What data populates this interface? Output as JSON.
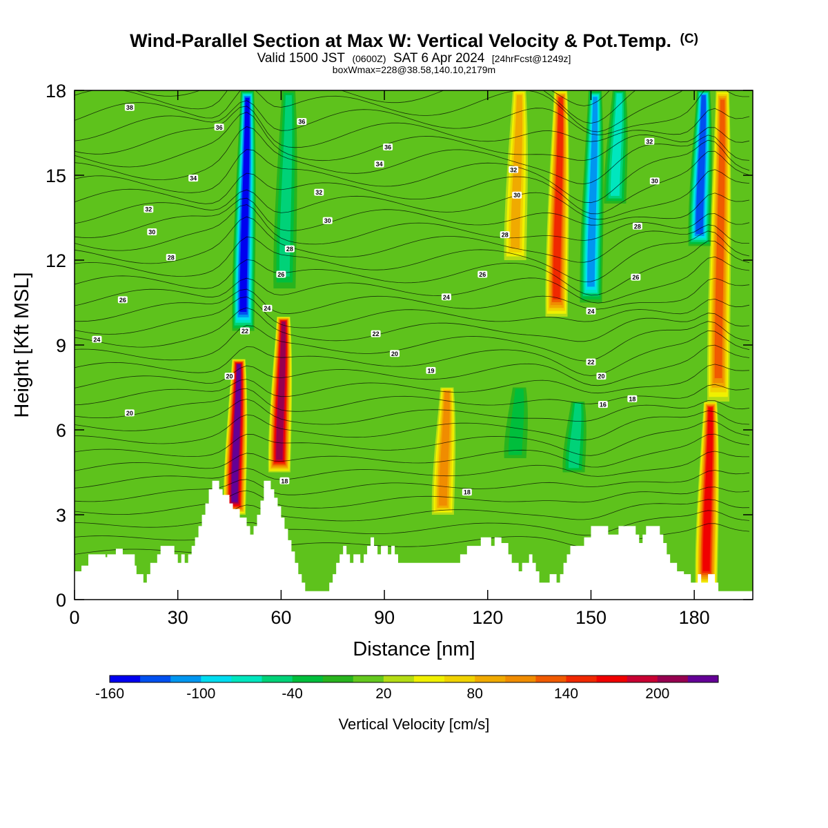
{
  "page": {
    "title_main": "Wind-Parallel Section at Max W: Vertical Velocity & Pot.Temp.",
    "title_mark": "(C)",
    "subtitle_a": "Valid 1500 JST",
    "subtitle_b": "(0600Z)",
    "subtitle_c": "SAT 6 Apr 2024",
    "subtitle_d": "[24hrFcst@1249z]",
    "info_line": "boxWmax=228@38.58,140.10,2179m"
  },
  "chart_data": {
    "type": "heatmap",
    "xlabel": "Distance [nm]",
    "ylabel": "Height [Kft MSL]",
    "xlim": [
      0,
      197
    ],
    "ylim": [
      0,
      18
    ],
    "x_ticks": [
      "0",
      "30",
      "60",
      "90",
      "120",
      "150",
      "180"
    ],
    "x_tick_values": [
      0,
      30,
      60,
      90,
      120,
      150,
      180
    ],
    "y_ticks": [
      "0",
      "3",
      "6",
      "9",
      "12",
      "15",
      "18"
    ],
    "y_tick_values": [
      0,
      3,
      6,
      9,
      12,
      15,
      18
    ],
    "colorbar": {
      "label": "Vertical Velocity [cm/s]",
      "tick_labels": [
        "-160",
        "-100",
        "-40",
        "20",
        "80",
        "140",
        "200"
      ],
      "tick_values": [
        -160,
        -100,
        -40,
        20,
        80,
        140,
        200
      ],
      "range": [
        -160,
        240
      ],
      "colors": [
        "#0000f0",
        "#0050f0",
        "#0096f0",
        "#00dcf0",
        "#00e6be",
        "#00d278",
        "#00be3c",
        "#28b41e",
        "#64c81e",
        "#b4dc14",
        "#f0f000",
        "#f0d200",
        "#f0aa00",
        "#f08c00",
        "#f05a00",
        "#f02800",
        "#f00000",
        "#c80032",
        "#960050",
        "#640096"
      ]
    },
    "velocity_features": [
      {
        "x": 46.5,
        "y_bottom": 3.0,
        "y_top": 8.5,
        "w": 228,
        "sign": "up"
      },
      {
        "x": 59.5,
        "y_bottom": 4.5,
        "y_top": 10.0,
        "w": 200,
        "sign": "up"
      },
      {
        "x": 49.0,
        "y_bottom": 9.5,
        "y_top": 18.0,
        "w": -160,
        "sign": "down"
      },
      {
        "x": 61.0,
        "y_bottom": 11.0,
        "y_top": 18.0,
        "w": -60,
        "sign": "down"
      },
      {
        "x": 107.0,
        "y_bottom": 3.0,
        "y_top": 7.5,
        "w": 100,
        "sign": "up"
      },
      {
        "x": 140.0,
        "y_bottom": 10.0,
        "y_top": 18.0,
        "w": 140,
        "sign": "up"
      },
      {
        "x": 128.0,
        "y_bottom": 12.0,
        "y_top": 18.0,
        "w": 90,
        "sign": "up"
      },
      {
        "x": 150.0,
        "y_bottom": 10.5,
        "y_top": 18.0,
        "w": -120,
        "sign": "down"
      },
      {
        "x": 157.0,
        "y_bottom": 14.0,
        "y_top": 18.0,
        "w": -90,
        "sign": "down"
      },
      {
        "x": 183.5,
        "y_bottom": 0.5,
        "y_top": 7.0,
        "w": 170,
        "sign": "up"
      },
      {
        "x": 187.0,
        "y_bottom": 7.0,
        "y_top": 18.0,
        "w": 130,
        "sign": "up"
      },
      {
        "x": 181.5,
        "y_bottom": 12.5,
        "y_top": 18.0,
        "w": -150,
        "sign": "down"
      },
      {
        "x": 145.0,
        "y_bottom": 4.5,
        "y_top": 7.0,
        "w": -70,
        "sign": "down"
      },
      {
        "x": 128.0,
        "y_bottom": 5.0,
        "y_top": 7.5,
        "w": -50,
        "sign": "down"
      }
    ],
    "contour_levels": [
      16,
      18,
      20,
      22,
      24,
      26,
      28,
      30,
      32,
      34,
      36,
      38
    ],
    "contour_labels": [
      {
        "text": "38",
        "x": 16,
        "y": 17.4
      },
      {
        "text": "36",
        "x": 42,
        "y": 16.7
      },
      {
        "text": "36",
        "x": 66,
        "y": 16.9
      },
      {
        "text": "36",
        "x": 91,
        "y": 16.0
      },
      {
        "text": "34",
        "x": 34.5,
        "y": 14.9
      },
      {
        "text": "34",
        "x": 88.5,
        "y": 15.4
      },
      {
        "text": "32",
        "x": 21.5,
        "y": 13.8
      },
      {
        "text": "32",
        "x": 71,
        "y": 14.4
      },
      {
        "text": "32",
        "x": 127.5,
        "y": 15.2
      },
      {
        "text": "32",
        "x": 167,
        "y": 16.2
      },
      {
        "text": "30",
        "x": 22.5,
        "y": 13.0
      },
      {
        "text": "30",
        "x": 73.5,
        "y": 13.4
      },
      {
        "text": "30",
        "x": 128.5,
        "y": 14.3
      },
      {
        "text": "30",
        "x": 168.5,
        "y": 14.8
      },
      {
        "text": "28",
        "x": 28,
        "y": 12.1
      },
      {
        "text": "28",
        "x": 62.5,
        "y": 12.4
      },
      {
        "text": "28",
        "x": 125,
        "y": 12.9
      },
      {
        "text": "28",
        "x": 163.5,
        "y": 13.2
      },
      {
        "text": "26",
        "x": 14,
        "y": 10.6
      },
      {
        "text": "26",
        "x": 60,
        "y": 11.5
      },
      {
        "text": "26",
        "x": 118.5,
        "y": 11.5
      },
      {
        "text": "26",
        "x": 163,
        "y": 11.4
      },
      {
        "text": "24",
        "x": 6.5,
        "y": 9.2
      },
      {
        "text": "24",
        "x": 56,
        "y": 10.3
      },
      {
        "text": "24",
        "x": 108,
        "y": 10.7
      },
      {
        "text": "24",
        "x": 150,
        "y": 10.2
      },
      {
        "text": "22",
        "x": 49.5,
        "y": 9.5
      },
      {
        "text": "22",
        "x": 87.5,
        "y": 9.4
      },
      {
        "text": "22",
        "x": 150,
        "y": 8.4
      },
      {
        "text": "20",
        "x": 45,
        "y": 7.9
      },
      {
        "text": "20",
        "x": 93,
        "y": 8.7
      },
      {
        "text": "20",
        "x": 16,
        "y": 6.6
      },
      {
        "text": "20",
        "x": 153,
        "y": 7.9
      },
      {
        "text": "19",
        "x": 103.5,
        "y": 8.1
      },
      {
        "text": "18",
        "x": 61,
        "y": 4.2
      },
      {
        "text": "18",
        "x": 114,
        "y": 3.8
      },
      {
        "text": "18",
        "x": 162,
        "y": 7.1
      },
      {
        "text": "16",
        "x": 153.5,
        "y": 6.9
      }
    ],
    "terrain": [
      [
        0,
        1.0
      ],
      [
        2,
        1.0
      ],
      [
        2,
        1.2
      ],
      [
        4,
        1.2
      ],
      [
        4,
        1.6
      ],
      [
        9,
        1.6
      ],
      [
        9,
        1.5
      ],
      [
        9.5,
        1.5
      ],
      [
        9.5,
        1.6
      ],
      [
        12,
        1.6
      ],
      [
        12,
        1.8
      ],
      [
        14,
        1.8
      ],
      [
        14,
        1.6
      ],
      [
        17.5,
        1.6
      ],
      [
        17.5,
        1.2
      ],
      [
        18,
        1.2
      ],
      [
        18,
        0.9
      ],
      [
        20,
        0.9
      ],
      [
        20,
        0.6
      ],
      [
        21,
        0.6
      ],
      [
        21,
        0.9
      ],
      [
        22,
        0.9
      ],
      [
        22,
        1.3
      ],
      [
        24,
        1.3
      ],
      [
        24,
        1.6
      ],
      [
        25,
        1.6
      ],
      [
        25,
        1.9
      ],
      [
        29,
        1.9
      ],
      [
        29,
        1.6
      ],
      [
        30,
        1.6
      ],
      [
        30,
        1.3
      ],
      [
        31,
        1.3
      ],
      [
        31,
        1.6
      ],
      [
        32,
        1.6
      ],
      [
        32,
        1.3
      ],
      [
        33,
        1.3
      ],
      [
        33,
        1.6
      ],
      [
        34,
        1.6
      ],
      [
        34,
        1.9
      ],
      [
        35,
        1.9
      ],
      [
        35,
        2.2
      ],
      [
        36,
        2.2
      ],
      [
        36,
        2.6
      ],
      [
        37,
        2.6
      ],
      [
        37,
        3.0
      ],
      [
        38,
        3.0
      ],
      [
        38,
        3.4
      ],
      [
        39,
        3.4
      ],
      [
        39,
        3.9
      ],
      [
        40,
        3.9
      ],
      [
        40,
        4.2
      ],
      [
        42,
        4.2
      ],
      [
        42,
        3.9
      ],
      [
        43,
        3.9
      ],
      [
        43,
        3.7
      ],
      [
        45,
        3.7
      ],
      [
        45,
        3.4
      ],
      [
        46,
        3.4
      ],
      [
        46,
        3.2
      ],
      [
        48,
        3.2
      ],
      [
        48,
        2.9
      ],
      [
        50,
        2.9
      ],
      [
        50,
        2.6
      ],
      [
        51,
        2.6
      ],
      [
        51,
        2.3
      ],
      [
        52,
        2.3
      ],
      [
        52,
        2.6
      ],
      [
        53,
        2.6
      ],
      [
        53,
        3.0
      ],
      [
        54,
        3.0
      ],
      [
        54,
        3.5
      ],
      [
        55,
        3.5
      ],
      [
        55,
        4.2
      ],
      [
        57,
        4.2
      ],
      [
        57,
        3.9
      ],
      [
        58,
        3.9
      ],
      [
        58,
        3.6
      ],
      [
        59,
        3.6
      ],
      [
        59,
        3.3
      ],
      [
        60,
        3.3
      ],
      [
        60,
        2.9
      ],
      [
        61,
        2.9
      ],
      [
        61,
        2.5
      ],
      [
        62,
        2.5
      ],
      [
        62,
        2.1
      ],
      [
        63,
        2.1
      ],
      [
        63,
        1.7
      ],
      [
        64,
        1.7
      ],
      [
        64,
        1.3
      ],
      [
        65,
        1.3
      ],
      [
        65,
        0.9
      ],
      [
        66,
        0.9
      ],
      [
        66,
        0.6
      ],
      [
        67,
        0.6
      ],
      [
        67,
        0.3
      ],
      [
        74,
        0.3
      ],
      [
        74,
        0.6
      ],
      [
        75,
        0.6
      ],
      [
        75,
        0.9
      ],
      [
        76,
        0.9
      ],
      [
        76,
        1.3
      ],
      [
        77,
        1.3
      ],
      [
        77,
        1.6
      ],
      [
        78,
        1.6
      ],
      [
        78,
        1.9
      ],
      [
        79,
        1.9
      ],
      [
        79,
        1.6
      ],
      [
        80,
        1.6
      ],
      [
        80,
        1.3
      ],
      [
        81,
        1.3
      ],
      [
        81,
        1.6
      ],
      [
        83,
        1.6
      ],
      [
        83,
        1.3
      ],
      [
        84,
        1.3
      ],
      [
        84,
        1.6
      ],
      [
        85,
        1.6
      ],
      [
        85,
        1.9
      ],
      [
        86,
        1.9
      ],
      [
        86,
        2.2
      ],
      [
        87,
        2.2
      ],
      [
        87,
        1.9
      ],
      [
        88,
        1.9
      ],
      [
        88,
        1.6
      ],
      [
        89,
        1.6
      ],
      [
        89,
        1.9
      ],
      [
        91,
        1.9
      ],
      [
        91,
        1.6
      ],
      [
        92,
        1.6
      ],
      [
        92,
        1.9
      ],
      [
        93,
        1.9
      ],
      [
        93,
        1.6
      ],
      [
        94,
        1.6
      ],
      [
        94,
        1.3
      ],
      [
        112,
        1.3
      ],
      [
        112,
        1.6
      ],
      [
        114,
        1.6
      ],
      [
        114,
        1.9
      ],
      [
        118,
        1.9
      ],
      [
        118,
        2.2
      ],
      [
        121,
        2.2
      ],
      [
        121,
        1.9
      ],
      [
        122,
        1.9
      ],
      [
        122,
        2.2
      ],
      [
        124,
        2.2
      ],
      [
        124,
        2.0
      ],
      [
        126,
        2.0
      ],
      [
        126,
        1.6
      ],
      [
        127,
        1.6
      ],
      [
        127,
        1.3
      ],
      [
        129,
        1.3
      ],
      [
        129,
        1.0
      ],
      [
        130,
        1.0
      ],
      [
        130,
        1.3
      ],
      [
        132,
        1.3
      ],
      [
        132,
        1.6
      ],
      [
        133,
        1.6
      ],
      [
        133,
        1.3
      ],
      [
        134,
        1.3
      ],
      [
        134,
        1.0
      ],
      [
        135,
        1.0
      ],
      [
        135,
        0.6
      ],
      [
        138,
        0.6
      ],
      [
        138,
        0.9
      ],
      [
        140,
        0.9
      ],
      [
        140,
        0.6
      ],
      [
        141,
        0.6
      ],
      [
        141,
        0.9
      ],
      [
        142,
        0.9
      ],
      [
        142,
        1.3
      ],
      [
        143,
        1.3
      ],
      [
        143,
        1.6
      ],
      [
        144,
        1.6
      ],
      [
        144,
        1.9
      ],
      [
        148,
        1.9
      ],
      [
        148,
        2.2
      ],
      [
        150,
        2.2
      ],
      [
        150,
        2.6
      ],
      [
        155,
        2.6
      ],
      [
        155,
        2.3
      ],
      [
        158,
        2.3
      ],
      [
        158,
        2.6
      ],
      [
        163,
        2.6
      ],
      [
        163,
        2.3
      ],
      [
        164,
        2.3
      ],
      [
        164,
        2.0
      ],
      [
        165,
        2.0
      ],
      [
        165,
        2.3
      ],
      [
        166,
        2.3
      ],
      [
        166,
        2.6
      ],
      [
        170,
        2.6
      ],
      [
        170,
        2.3
      ],
      [
        171,
        2.3
      ],
      [
        171,
        2.0
      ],
      [
        172,
        2.0
      ],
      [
        172,
        1.6
      ],
      [
        173,
        1.6
      ],
      [
        173,
        1.3
      ],
      [
        175,
        1.3
      ],
      [
        175,
        1.0
      ],
      [
        177,
        1.0
      ],
      [
        177,
        0.9
      ],
      [
        179,
        0.9
      ],
      [
        179,
        0.6
      ],
      [
        181,
        0.6
      ],
      [
        181,
        0.9
      ],
      [
        182,
        0.9
      ],
      [
        182,
        0.6
      ],
      [
        184,
        0.6
      ],
      [
        184,
        0.9
      ],
      [
        186,
        0.9
      ],
      [
        186,
        0.6
      ],
      [
        187,
        0.6
      ],
      [
        187,
        0.3
      ],
      [
        197,
        0.3
      ]
    ]
  }
}
